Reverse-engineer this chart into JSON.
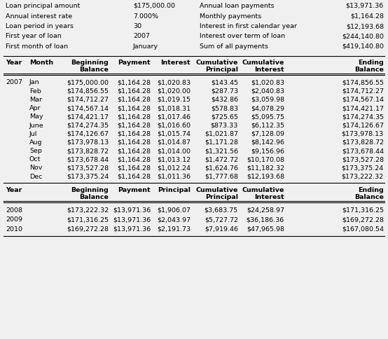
{
  "summary_left": [
    [
      "Loan principal amount",
      "$175,000.00"
    ],
    [
      "Annual interest rate",
      "7.000%"
    ],
    [
      "Loan period in years",
      "30"
    ],
    [
      "First year of loan",
      "2007"
    ],
    [
      "First month of loan",
      "January"
    ]
  ],
  "summary_right": [
    [
      "Annual loan payments",
      "$13,971.36"
    ],
    [
      "Monthly payments",
      "$1,164.28"
    ],
    [
      "Interest in first calendar year",
      "$12,193.68"
    ],
    [
      "Interest over term of loan",
      "$244,140.80"
    ],
    [
      "Sum of all payments",
      "$419,140.80"
    ]
  ],
  "monthly_data": [
    [
      "2007",
      "Jan",
      "$175,000.00",
      "$1,164.28",
      "$1,020.83",
      "$143.45",
      "$1,020.83",
      "$174,856.55"
    ],
    [
      "",
      "Feb",
      "$174,856.55",
      "$1,164.28",
      "$1,020.00",
      "$287.73",
      "$2,040.83",
      "$174,712.27"
    ],
    [
      "",
      "Mar",
      "$174,712.27",
      "$1,164.28",
      "$1,019.15",
      "$432.86",
      "$3,059.98",
      "$174,567.14"
    ],
    [
      "",
      "Apr",
      "$174,567.14",
      "$1,164.28",
      "$1,018.31",
      "$578.83",
      "$4,078.29",
      "$174,421.17"
    ],
    [
      "",
      "May",
      "$174,421.17",
      "$1,164.28",
      "$1,017.46",
      "$725.65",
      "$5,095.75",
      "$174,274.35"
    ],
    [
      "",
      "June",
      "$174,274.35",
      "$1,164.28",
      "$1,016.60",
      "$873.33",
      "$6,112.35",
      "$174,126.67"
    ],
    [
      "",
      "Jul",
      "$174,126.67",
      "$1,164.28",
      "$1,015.74",
      "$1,021.87",
      "$7,128.09",
      "$173,978.13"
    ],
    [
      "",
      "Aug",
      "$173,978.13",
      "$1,164.28",
      "$1,014.87",
      "$1,171.28",
      "$8,142.96",
      "$173,828.72"
    ],
    [
      "",
      "Sep",
      "$173,828.72",
      "$1,164.28",
      "$1,014.00",
      "$1,321.56",
      "$9,156.96",
      "$173,678.44"
    ],
    [
      "",
      "Oct",
      "$173,678.44",
      "$1,164.28",
      "$1,013.12",
      "$1,472.72",
      "$10,170.08",
      "$173,527.28"
    ],
    [
      "",
      "Nov",
      "$173,527.28",
      "$1,164.28",
      "$1,012.24",
      "$1,624.76",
      "$11,182.32",
      "$173,375.24"
    ],
    [
      "",
      "Dec",
      "$173,375.24",
      "$1,164.28",
      "$1,011.36",
      "$1,777.68",
      "$12,193.68",
      "$173,222.32"
    ]
  ],
  "annual_data": [
    [
      "2008",
      "$173,222.32",
      "$13,971.36",
      "$1,906.07",
      "$3,683.75",
      "$24,258.97",
      "$171,316.25"
    ],
    [
      "2009",
      "$171,316.25",
      "$13,971.36",
      "$2,043.97",
      "$5,727.72",
      "$36,186.36",
      "$169,272.28"
    ],
    [
      "2010",
      "$169,272.28",
      "$13,971.36",
      "$2,191.73",
      "$7,919.46",
      "$47,965.98",
      "$167,080.54"
    ]
  ],
  "bg_color": "#f0f0f0",
  "font_size": 6.8
}
